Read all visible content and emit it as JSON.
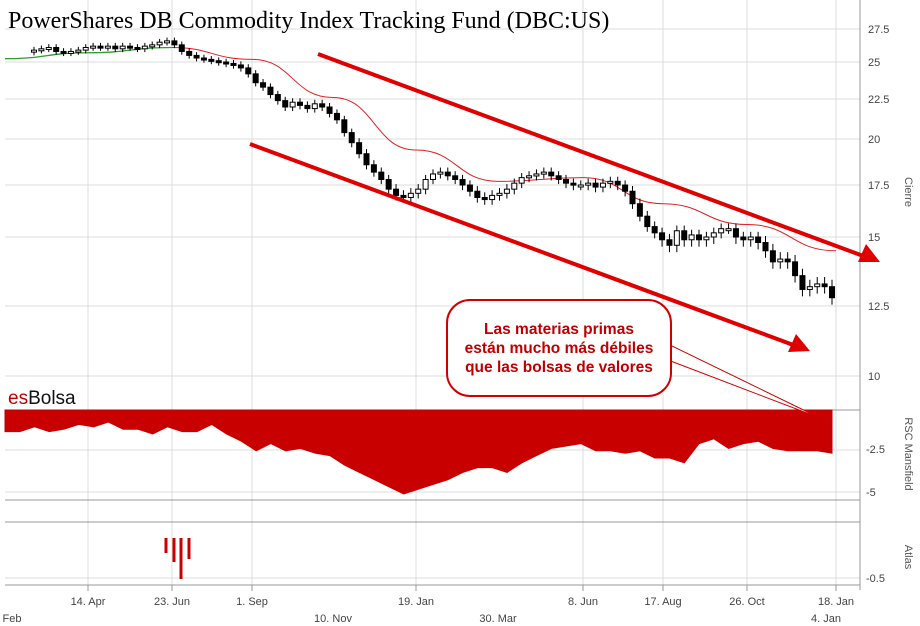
{
  "header": {
    "title": "PowerShares DB Commodity Index Tracking Fund (DBC:US)"
  },
  "brand": {
    "prefix": "es",
    "name": "Bolsa"
  },
  "annotation": {
    "text": "Las materias primas están mucho más débiles que las bolsas de valores"
  },
  "colors": {
    "candle": "#000000",
    "moving_average": "#e02020",
    "early_average": "#2e9e2e",
    "rsc_fill": "#c80000",
    "trend_arrows": "#e00000",
    "atlas_bars": "#c80000",
    "grid": "#dcdcdc"
  },
  "chart_data": [
    {
      "type": "candlestick",
      "title": "PowerShares DB Commodity Index Tracking Fund (DBC:US)",
      "ylabel": "Cierre",
      "ylim": [
        10,
        28.2
      ],
      "yticks": [
        10,
        12.5,
        15,
        17.5,
        20,
        22.5,
        25,
        27.5
      ],
      "ytick_labels": [
        "10",
        "12.5",
        "15",
        "17.5",
        "20",
        "22.5",
        "25",
        "27.5"
      ],
      "x_ticks_top": [
        "14. Apr",
        "23. Jun",
        "1. Sep",
        "19. Jan",
        "8. Jun",
        "17. Aug",
        "26. Oct",
        "18. Jan"
      ],
      "x_ticks_bottom": [
        "Feb",
        "10. Nov",
        "30. Mar",
        "4. Jan"
      ],
      "grid": true,
      "close": [
        25.9,
        26,
        26.1,
        25.8,
        25.7,
        25.8,
        25.9,
        26.1,
        26.2,
        26.1,
        26.2,
        26,
        26.2,
        26.1,
        26,
        26.2,
        26.3,
        26.5,
        26.6,
        26.3,
        25.8,
        25.5,
        25.3,
        25.2,
        25.1,
        25,
        24.9,
        24.8,
        24.6,
        24.2,
        23.6,
        23.3,
        22.8,
        22.4,
        22,
        22.3,
        22.1,
        21.9,
        22.2,
        22,
        21.6,
        21.2,
        20.4,
        19.8,
        19.2,
        18.6,
        18.2,
        17.8,
        17.3,
        17,
        16.9,
        17.1,
        17.3,
        17.8,
        18.1,
        18.2,
        18,
        17.8,
        17.5,
        17.2,
        16.9,
        16.8,
        17,
        17.1,
        17.3,
        17.6,
        17.9,
        18,
        18.1,
        18.2,
        18,
        17.8,
        17.6,
        17.5,
        17.5,
        17.6,
        17.4,
        17.6,
        17.7,
        17.5,
        17.2,
        16.6,
        16,
        15.5,
        15.2,
        14.9,
        14.7,
        15.3,
        14.9,
        15.1,
        14.9,
        15,
        15.2,
        15.4,
        15.4,
        15,
        14.9,
        15,
        14.8,
        14.5,
        14.1,
        14.2,
        14.1,
        13.6,
        13.1,
        13.2,
        13.3,
        13.2,
        12.8
      ],
      "moving_average": [
        [
          "Feb",
          25.25
        ],
        [
          "14. Apr",
          25.7
        ],
        [
          "23. Jun",
          26.1
        ],
        [
          "1. Sep",
          25.2
        ],
        [
          "10. Nov",
          22.6
        ],
        [
          "19. Jan",
          19.4
        ],
        [
          "30. Mar",
          17.7
        ],
        [
          "8. Jun",
          17.9
        ],
        [
          "17. Aug",
          16.6
        ],
        [
          "26. Oct",
          15.6
        ],
        [
          "18. Jan",
          14.5
        ]
      ],
      "annotations": [
        "Las materias primas están mucho más débiles que las bolsas de valores"
      ]
    },
    {
      "type": "area",
      "ylabel": "RSC Mansfield",
      "ylim": [
        -6,
        0
      ],
      "yticks": [
        -2.5,
        -5
      ],
      "ytick_labels": [
        "-2.5",
        "-5"
      ],
      "values": [
        -0.9,
        -0.9,
        -0.7,
        -0.9,
        -0.8,
        -0.6,
        -0.7,
        -0.5,
        -0.8,
        -0.8,
        -1,
        -0.7,
        -0.9,
        -0.9,
        -0.6,
        -1,
        -1.3,
        -1.7,
        -1.4,
        -1.7,
        -1.6,
        -1.8,
        -1.9,
        -2.3,
        -2.6,
        -2.9,
        -3.2,
        -3.5,
        -3.3,
        -3.1,
        -2.9,
        -2.6,
        -2.4,
        -2.4,
        -2.6,
        -2.2,
        -1.9,
        -1.6,
        -1.5,
        -1.4,
        -1.7,
        -1.7,
        -1.8,
        -1.7,
        -2,
        -2,
        -2.2,
        -1.4,
        -1.2,
        -1.6,
        -1.4,
        -1.3,
        -1.6,
        -1.7,
        -1.7,
        -1.7,
        -1.8
      ]
    },
    {
      "type": "bar",
      "ylabel": "Atlas",
      "yticks": [
        -0.5
      ],
      "ytick_labels": [
        "-0.5"
      ],
      "values": [
        -0.25,
        -0.4,
        -0.6,
        -0.35,
        -0.2
      ]
    }
  ]
}
